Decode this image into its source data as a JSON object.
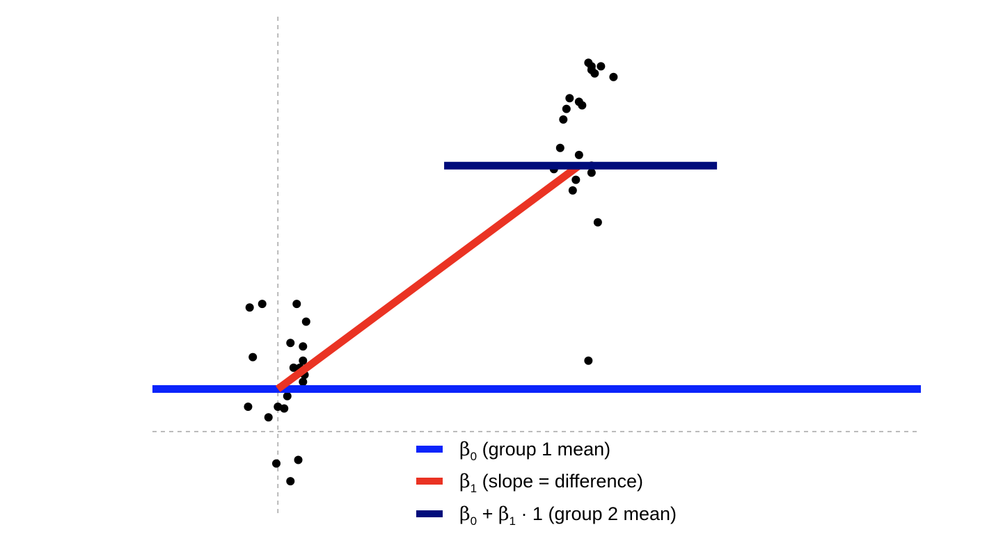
{
  "chart_data": {
    "type": "scatter",
    "title": "",
    "xlabel": "",
    "ylabel": "",
    "xlim": [
      -0.4,
      2.05
    ],
    "ylim": [
      -0.35,
      1.05
    ],
    "grid": false,
    "axes_visible": false,
    "reference_lines": [
      {
        "orientation": "vertical",
        "value": 0,
        "style": "dashed",
        "color": "#aaaaaa"
      },
      {
        "orientation": "horizontal",
        "value": -0.12,
        "style": "dashed",
        "color": "#aaaaaa"
      }
    ],
    "groups": [
      {
        "group": 1,
        "x": 0
      },
      {
        "group": 2,
        "x": 1
      }
    ],
    "points": [
      {
        "x": -0.09,
        "y": 0.23
      },
      {
        "x": -0.05,
        "y": 0.24
      },
      {
        "x": 0.06,
        "y": 0.24
      },
      {
        "x": 0.09,
        "y": 0.19
      },
      {
        "x": 0.04,
        "y": 0.13
      },
      {
        "x": 0.08,
        "y": 0.12
      },
      {
        "x": -0.08,
        "y": 0.09
      },
      {
        "x": 0.08,
        "y": 0.08
      },
      {
        "x": 0.05,
        "y": 0.06
      },
      {
        "x": 0.07,
        "y": 0.06
      },
      {
        "x": 0.085,
        "y": 0.04
      },
      {
        "x": 0.08,
        "y": 0.02
      },
      {
        "x": 0.03,
        "y": -0.02
      },
      {
        "x": -0.095,
        "y": -0.05
      },
      {
        "x": 0.0,
        "y": -0.05
      },
      {
        "x": 0.02,
        "y": -0.055
      },
      {
        "x": -0.03,
        "y": -0.08
      },
      {
        "x": 0.065,
        "y": -0.2
      },
      {
        "x": -0.005,
        "y": -0.21
      },
      {
        "x": 0.04,
        "y": -0.26
      },
      {
        "x": 0.99,
        "y": 0.92
      },
      {
        "x": 1.0,
        "y": 0.91
      },
      {
        "x": 1.03,
        "y": 0.91
      },
      {
        "x": 1.01,
        "y": 0.89
      },
      {
        "x": 1.0,
        "y": 0.9
      },
      {
        "x": 1.07,
        "y": 0.88
      },
      {
        "x": 0.93,
        "y": 0.82
      },
      {
        "x": 0.96,
        "y": 0.81
      },
      {
        "x": 0.92,
        "y": 0.79
      },
      {
        "x": 0.97,
        "y": 0.8
      },
      {
        "x": 0.91,
        "y": 0.76
      },
      {
        "x": 0.9,
        "y": 0.68
      },
      {
        "x": 0.96,
        "y": 0.66
      },
      {
        "x": 1.0,
        "y": 0.63
      },
      {
        "x": 0.88,
        "y": 0.62
      },
      {
        "x": 1.0,
        "y": 0.61
      },
      {
        "x": 0.95,
        "y": 0.59
      },
      {
        "x": 0.94,
        "y": 0.56
      },
      {
        "x": 1.02,
        "y": 0.47
      },
      {
        "x": 0.99,
        "y": 0.08
      }
    ],
    "lines": [
      {
        "name": "β0 (group 1 mean)",
        "color": "#0b24fb",
        "x": [
          -0.4,
          2.05
        ],
        "y": [
          0,
          0
        ]
      },
      {
        "name": "β1 (slope = difference)",
        "color": "#ea3323",
        "x": [
          0,
          0.96
        ],
        "y": [
          0,
          0.63
        ]
      },
      {
        "name": "β0 + β1 · 1 (group 2 mean)",
        "color": "#000c7b",
        "x": [
          0.53,
          1.4
        ],
        "y": [
          0.63,
          0.63
        ]
      }
    ],
    "legend": {
      "placement": "bottom-center",
      "entries": [
        {
          "symbol": "β",
          "subscript": "0",
          "text": " (group 1 mean)",
          "color": "#0b24fb"
        },
        {
          "symbol": "β",
          "subscript": "1",
          "text": " (slope = difference)",
          "color": "#ea3323"
        },
        {
          "symbol": "β",
          "subscript": "0",
          "text": " + ",
          "symbol2": "β",
          "subscript2": "1",
          "text2": " · 1 (group 2 mean)",
          "color": "#000c7b"
        }
      ]
    }
  }
}
